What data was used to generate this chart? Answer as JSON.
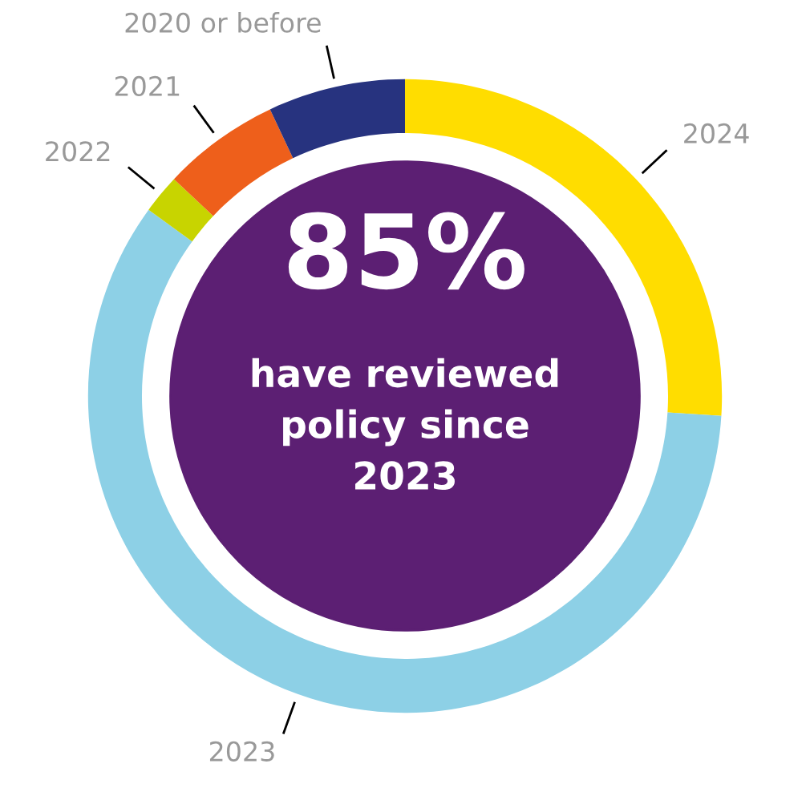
{
  "chart_data": {
    "type": "donut",
    "categories": [
      "2024",
      "2023",
      "2022",
      "2021",
      "2020 or before"
    ],
    "values": [
      26,
      59,
      2,
      6,
      7
    ],
    "colors": [
      "#ffdd00",
      "#8dd0e6",
      "#c8d400",
      "#ee5f1b",
      "#27337f"
    ],
    "annotations": [
      "85%",
      "have reviewed\npolicy since\n2023"
    ],
    "legend": false
  }
}
